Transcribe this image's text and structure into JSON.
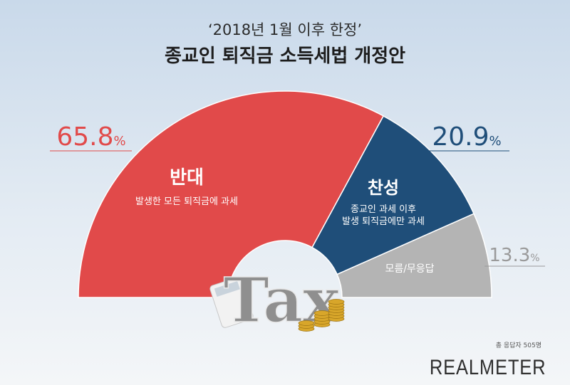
{
  "header": {
    "subtitle": "‘2018년 1월 이후 한정’",
    "title": "종교인 퇴직금 소득세법 개정안"
  },
  "chart_data": {
    "type": "pie",
    "shape": "semicircle",
    "slices": [
      {
        "label": "반대",
        "desc": "발생한 모든 퇴직금에 과세",
        "value": 65.8,
        "value_text": "65.8",
        "color": "#e14a4a"
      },
      {
        "label": "찬성",
        "desc": "종교인 과세 이후\n발생 퇴직금에만 과세",
        "value": 20.9,
        "value_text": "20.9",
        "color": "#1f4e79"
      },
      {
        "label": "",
        "desc": "모름/무응답",
        "value": 13.3,
        "value_text": "13.3",
        "color": "#b4b4b4"
      }
    ],
    "unit": "%"
  },
  "center_image": {
    "text": "Tax"
  },
  "footnote": "총 응답자 505명",
  "brand": "REALMETER"
}
